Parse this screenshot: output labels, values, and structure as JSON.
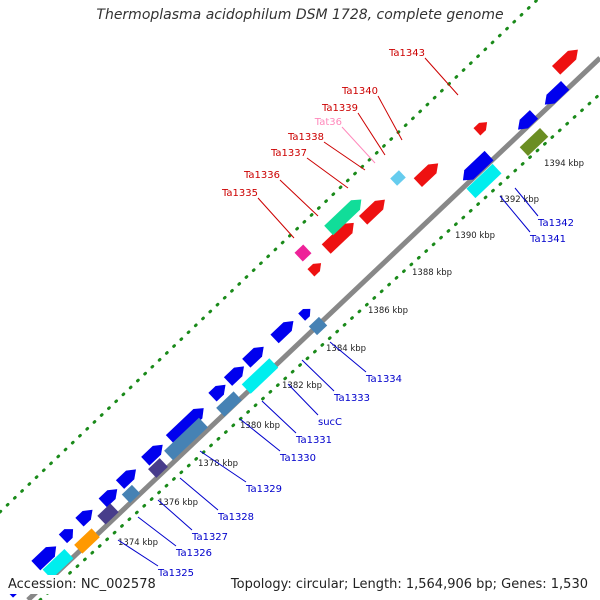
{
  "title": "Thermoplasma acidophilum DSM 1728, complete genome",
  "accession_text": "Accession: NC_002578",
  "summary_text": "Topology: circular; Length: 1,564,906 bp; Genes: 1,530",
  "colors": {
    "backbone": "#888888",
    "tick_dots": "#1a8a1a",
    "label_top_strand": "#cc0000",
    "label_bottom_strand": "#0000cc",
    "label_rna": "#ff88bb"
  },
  "kbp_ticks": [
    "1374 kbp",
    "1376 kbp",
    "1378 kbp",
    "1380 kbp",
    "1382 kbp",
    "1384 kbp",
    "1386 kbp",
    "1388 kbp",
    "1390 kbp",
    "1392 kbp",
    "1394 kbp"
  ],
  "gene_labels_top": [
    "Ta1343",
    "Ta1340",
    "Ta1339",
    "Tat36",
    "Ta1338",
    "Ta1337",
    "Ta1336",
    "Ta1335"
  ],
  "gene_labels_bottom": [
    "Ta1342",
    "Ta1341",
    "Ta1334",
    "Ta1333",
    "sucC",
    "Ta1331",
    "Ta1330",
    "Ta1329",
    "Ta1328",
    "Ta1327",
    "Ta1326",
    "Ta1325"
  ]
}
